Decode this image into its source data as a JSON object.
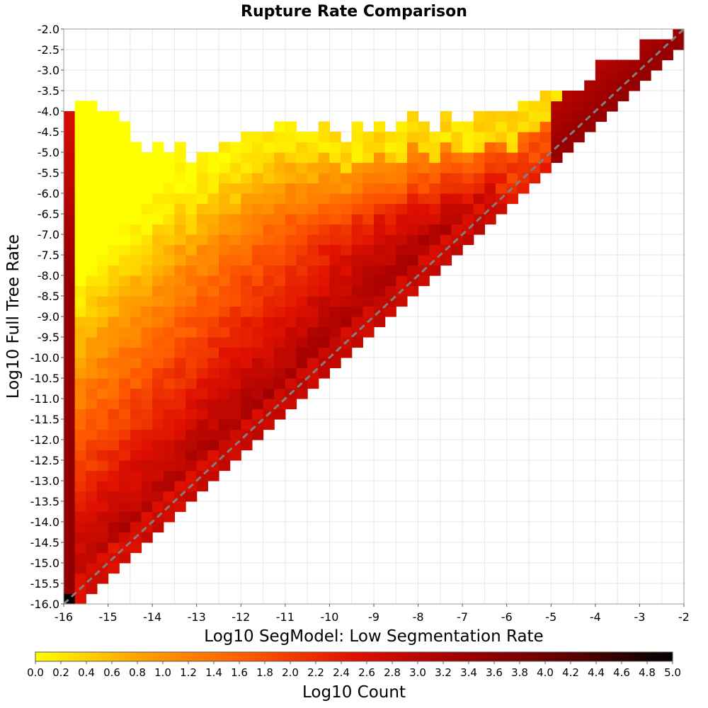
{
  "chart_data": {
    "type": "heatmap",
    "title": "Rupture Rate Comparison",
    "xlabel": "Log10 SegModel: Low Segmentation Rate",
    "ylabel": "Log10 Full Tree Rate",
    "xlim": [
      -16,
      -2
    ],
    "ylim": [
      -16,
      -2
    ],
    "x_ticks": [
      "-16",
      "-15",
      "-14",
      "-13",
      "-12",
      "-11",
      "-10",
      "-9",
      "-8",
      "-7",
      "-6",
      "-5",
      "-4",
      "-3",
      "-2"
    ],
    "y_ticks": [
      "-2.0",
      "-2.5",
      "-3.0",
      "-3.5",
      "-4.0",
      "-4.5",
      "-5.0",
      "-5.5",
      "-6.0",
      "-6.5",
      "-7.0",
      "-7.5",
      "-8.0",
      "-8.5",
      "-9.0",
      "-9.5",
      "-10.0",
      "-10.5",
      "-11.0",
      "-11.5",
      "-12.0",
      "-12.5",
      "-13.0",
      "-13.5",
      "-14.0",
      "-14.5",
      "-15.0",
      "-15.5",
      "-16.0"
    ],
    "bin_size": 0.25,
    "color_scale": {
      "label": "Log10 Count",
      "min": 0.0,
      "max": 5.0,
      "ticks": [
        "0.0",
        "0.2",
        "0.4",
        "0.6",
        "0.8",
        "1.0",
        "1.2",
        "1.4",
        "1.6",
        "1.8",
        "2.0",
        "2.2",
        "2.4",
        "2.6",
        "2.8",
        "3.0",
        "3.2",
        "3.4",
        "3.6",
        "3.8",
        "4.0",
        "4.2",
        "4.4",
        "4.6",
        "4.8",
        "5.0"
      ],
      "colors": [
        "#ffff00",
        "#ffa000",
        "#ff5a00",
        "#e01000",
        "#a00000",
        "#600000",
        "#000000"
      ]
    },
    "reference_line": {
      "style": "dashed",
      "color": "#808080",
      "from": [
        -16,
        -16
      ],
      "to": [
        -2,
        -2
      ]
    },
    "grid": true,
    "description_of_density": {
      "diagonal_peak_log10_count": 3.4,
      "column_at_x_-16_log10_count": 3.5,
      "corner_at_-16_-16_log10_count": 5.0,
      "upper_fringe_log10_count": 0.1,
      "max_y_at_x": [
        [
          -16,
          -4.0
        ],
        [
          -15.5,
          -3.75
        ],
        [
          -15,
          -4.0
        ],
        [
          -14.5,
          -4.75
        ],
        [
          -14,
          -5.0
        ],
        [
          -13.5,
          -5.0
        ],
        [
          -13,
          -5.0
        ],
        [
          -12.5,
          -4.75
        ],
        [
          -12,
          -4.5
        ],
        [
          -11.5,
          -4.5
        ],
        [
          -11,
          -4.25
        ],
        [
          -10.5,
          -4.5
        ],
        [
          -10,
          -4.5
        ],
        [
          -9.5,
          -4.5
        ],
        [
          -9,
          -4.25
        ],
        [
          -8.5,
          -4.25
        ],
        [
          -8,
          -4.0
        ],
        [
          -7.5,
          -4.25
        ],
        [
          -7,
          -4.0
        ],
        [
          -6.5,
          -4.0
        ],
        [
          -6,
          -4.0
        ],
        [
          -5.5,
          -4.0
        ],
        [
          -5,
          -3.5
        ],
        [
          -4.5,
          -3.5
        ],
        [
          -4,
          -3.0
        ],
        [
          -3.5,
          -2.75
        ],
        [
          -3,
          -2.5
        ],
        [
          -2.5,
          -2.25
        ],
        [
          -2,
          -2.25
        ]
      ],
      "lower_edge": "y >= x - 0.25 (no data below the diagonal)"
    }
  }
}
